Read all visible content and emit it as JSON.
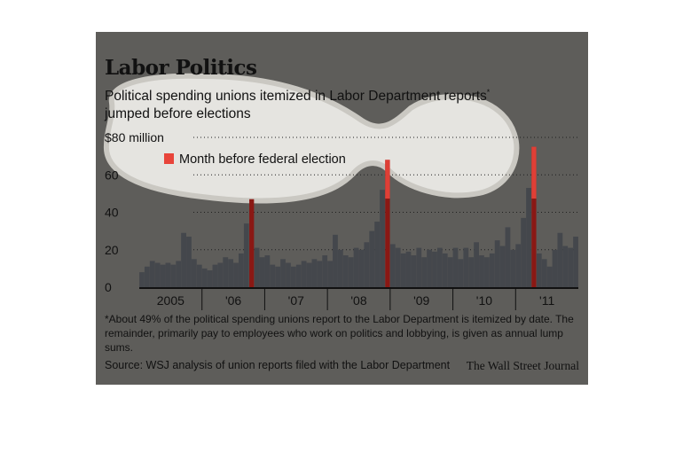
{
  "title": "Labor Politics",
  "subtitle": "Political spending unions itemized in Labor Department reports",
  "subtitle_mark": "*",
  "subtitle_line2": "jumped before elections",
  "footnote": "*About 49% of the political spending unions report to the Labor Department is itemized by date. The remainder, primarily pay to employees who work on politics and lobbying, is given as annual lump sums.",
  "source": "Source: WSJ analysis of union reports filed with the Labor Department",
  "credit": "The Wall Street Journal",
  "colors": {
    "panel": "#5e5d5a",
    "highlight_cloud": "#ebeae6",
    "bar": "#44474c",
    "election_bar": "#8a1814",
    "legend_swatch": "#e8443a"
  },
  "chart_data": {
    "type": "bar",
    "unit": "$ million",
    "ylim": [
      0,
      80
    ],
    "yticks": [
      0,
      20,
      40,
      60,
      80
    ],
    "ytick_labels": [
      "0",
      "20",
      "40",
      "60",
      "$80 million"
    ],
    "xticks": [
      "2005",
      "'06",
      "'07",
      "'08",
      "'09",
      "'10",
      "'11"
    ],
    "grid": true,
    "legend": [
      {
        "label": "Month before federal election",
        "color": "#e8443a"
      }
    ],
    "legend_position": "top-left",
    "series": [
      {
        "values": [
          8,
          11,
          14,
          13,
          12,
          13,
          12,
          14,
          29,
          27,
          15,
          12,
          10,
          9,
          12,
          13,
          16,
          15,
          13,
          18,
          34,
          47,
          21,
          16,
          17,
          12,
          11,
          15,
          13,
          11,
          12,
          14,
          13,
          15,
          14,
          17,
          14,
          28,
          20,
          17,
          16,
          21,
          20,
          24,
          30,
          35,
          52,
          68,
          23,
          21,
          18,
          19,
          17,
          21,
          16,
          20,
          19,
          21,
          18,
          16,
          21,
          15,
          21,
          16,
          24,
          17,
          16,
          18,
          25,
          22,
          32,
          20,
          23,
          37,
          53,
          75,
          18,
          15,
          11,
          20,
          29,
          22,
          21,
          27
        ],
        "election_indices": [
          21,
          47,
          75
        ]
      }
    ]
  }
}
